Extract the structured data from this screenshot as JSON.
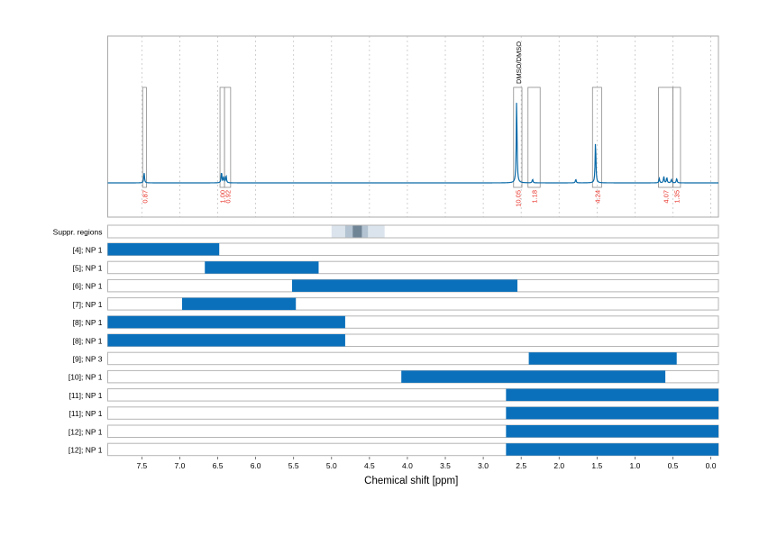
{
  "chart_data": {
    "type": "line",
    "xlabel": "Chemical shift [ppm]",
    "xlim": [
      7.95,
      -0.1
    ],
    "x_reversed": true,
    "x_ticks": [
      "7.5",
      "7.0",
      "6.5",
      "6.0",
      "5.5",
      "5.0",
      "4.5",
      "4.0",
      "3.5",
      "3.0",
      "2.5",
      "2.0",
      "1.5",
      "1.0",
      "0.5",
      "0.0"
    ],
    "x_grid": true,
    "spectrum": {
      "color": "#0a6aa8",
      "baseline_ppm_range": [
        7.95,
        -0.1
      ],
      "peaks": [
        {
          "ppm": 7.47,
          "height": 0.11
        },
        {
          "ppm": 6.45,
          "height": 0.12
        },
        {
          "ppm": 6.42,
          "height": 0.07
        },
        {
          "ppm": 6.39,
          "height": 0.08
        },
        {
          "ppm": 2.56,
          "height": 0.92
        },
        {
          "ppm": 2.35,
          "height": 0.04
        },
        {
          "ppm": 1.78,
          "height": 0.04
        },
        {
          "ppm": 1.52,
          "height": 0.46
        },
        {
          "ppm": 0.68,
          "height": 0.05
        },
        {
          "ppm": 0.62,
          "height": 0.07
        },
        {
          "ppm": 0.58,
          "height": 0.06
        },
        {
          "ppm": 0.52,
          "height": 0.04
        },
        {
          "ppm": 0.45,
          "height": 0.05
        }
      ]
    },
    "integration_boxes": [
      {
        "ppm_from": 7.49,
        "ppm_to": 7.44,
        "label": "0.87"
      },
      {
        "ppm_from": 6.47,
        "ppm_to": 6.41,
        "label": "1.00"
      },
      {
        "ppm_from": 6.41,
        "ppm_to": 6.33,
        "label": "0.92"
      },
      {
        "ppm_from": 2.6,
        "ppm_to": 2.49,
        "label": "10.05"
      },
      {
        "ppm_from": 2.41,
        "ppm_to": 2.25,
        "label": "1.18"
      },
      {
        "ppm_from": 1.56,
        "ppm_to": 1.44,
        "label": "4.24"
      },
      {
        "ppm_from": 0.69,
        "ppm_to": 0.5,
        "label": "4.07"
      },
      {
        "ppm_from": 0.5,
        "ppm_to": 0.4,
        "label": "1.35"
      }
    ],
    "annotations": [
      {
        "ppm": 2.54,
        "text": "DMSO/DMSO"
      }
    ],
    "integration_label_color": "#e8332a",
    "suppressed_regions": {
      "label": "Suppr. regions",
      "bands": [
        {
          "ppm_from": 5.0,
          "ppm_to": 4.3,
          "color": "#dbe4ec"
        },
        {
          "ppm_from": 4.82,
          "ppm_to": 4.52,
          "color": "#b3c3d1"
        },
        {
          "ppm_from": 4.72,
          "ppm_to": 4.6,
          "color": "#6f8596"
        }
      ]
    },
    "ranges": {
      "color": "#0a70bb",
      "rows": [
        {
          "label": "[4]; NP 1",
          "from": 7.95,
          "to": 6.48
        },
        {
          "label": "[5]; NP 1",
          "from": 6.67,
          "to": 5.17
        },
        {
          "label": "[6]; NP 1",
          "from": 5.52,
          "to": 2.55
        },
        {
          "label": "[7]; NP 1",
          "from": 6.97,
          "to": 5.47
        },
        {
          "label": "[8]; NP 1",
          "from": 7.95,
          "to": 4.82
        },
        {
          "label": "[8]; NP 1",
          "from": 7.95,
          "to": 4.82
        },
        {
          "label": "[9]; NP 3",
          "from": 2.4,
          "to": 0.45
        },
        {
          "label": "[10]; NP 1",
          "from": 4.08,
          "to": 0.6
        },
        {
          "label": "[11]; NP 1",
          "from": 2.7,
          "to": -0.1
        },
        {
          "label": "[11]; NP 1",
          "from": 2.7,
          "to": -0.1
        },
        {
          "label": "[12]; NP 1",
          "from": 2.7,
          "to": -0.1
        },
        {
          "label": "[12]; NP 1",
          "from": 2.7,
          "to": -0.1
        }
      ]
    }
  }
}
